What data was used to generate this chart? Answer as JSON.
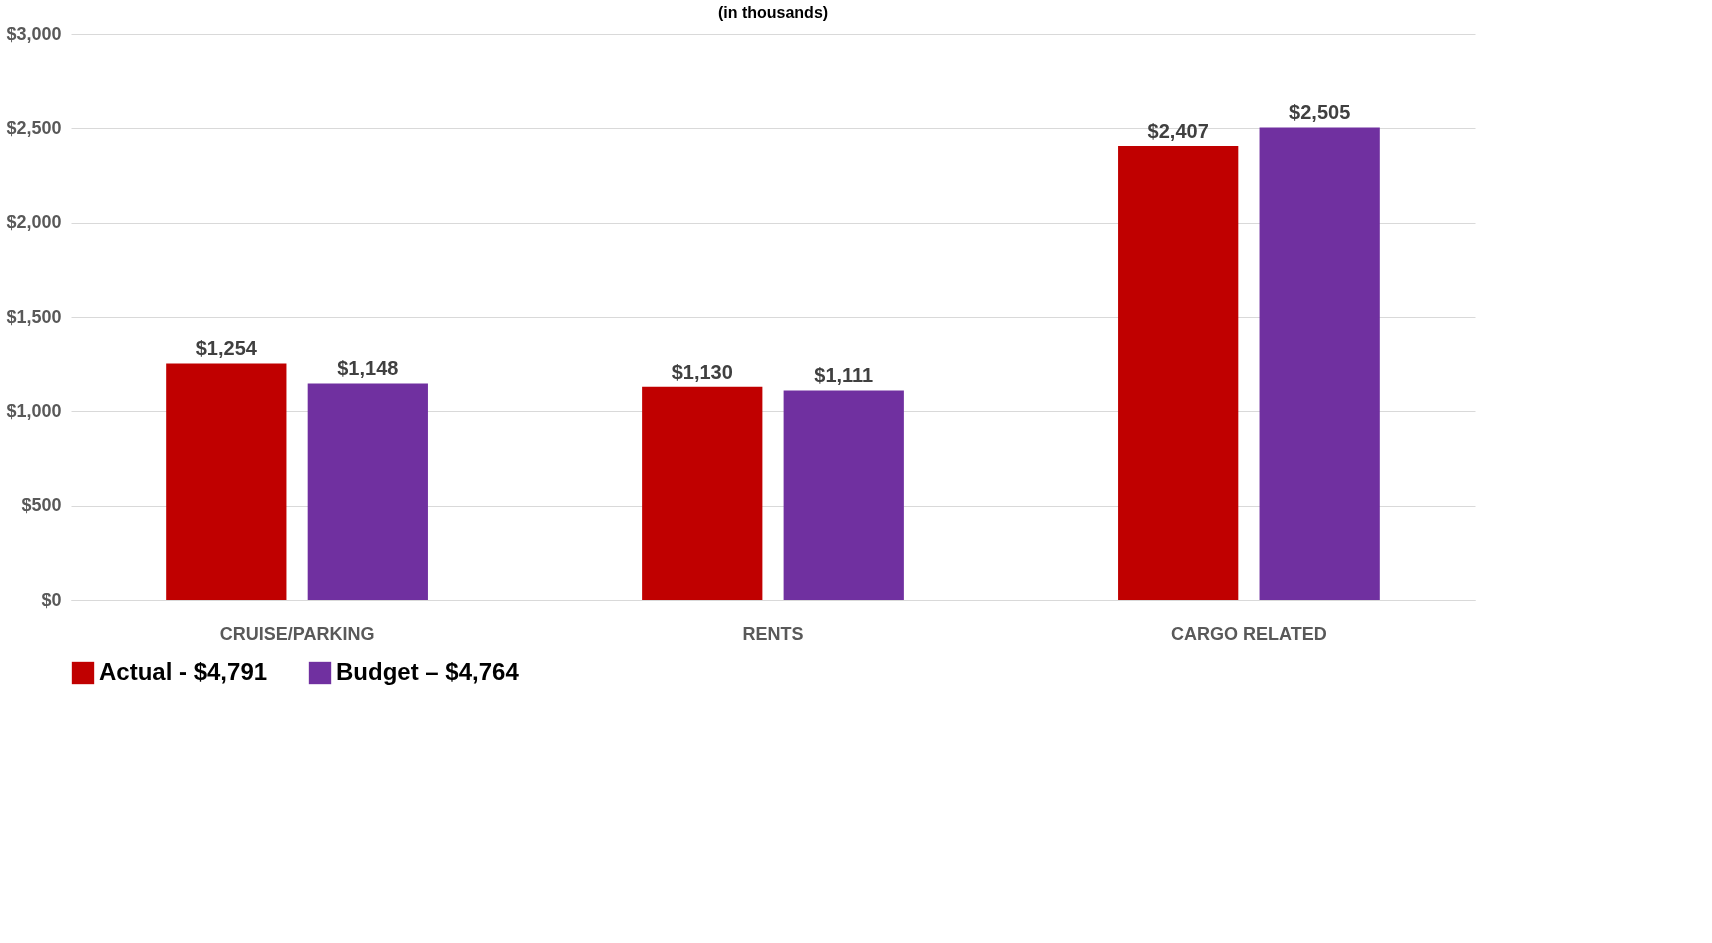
{
  "chart_data": {
    "type": "bar",
    "title": "(in thousands)",
    "categories": [
      "CRUISE/PARKING",
      "RENTS",
      "CARGO RELATED"
    ],
    "series": [
      {
        "name": "Actual - $4,791",
        "color": "#c00000",
        "values": [
          1254,
          1130,
          2407
        ],
        "value_labels": [
          "$1,254",
          "$1,130",
          "$2,407"
        ]
      },
      {
        "name": "Budget – $4,764",
        "color": "#7030a0",
        "values": [
          1148,
          1111,
          2505
        ],
        "value_labels": [
          "$1,148",
          "$1,111",
          "$2,505"
        ]
      }
    ],
    "ylim": [
      0,
      3000
    ],
    "yticks": [
      {
        "value": 0,
        "label": "$0"
      },
      {
        "value": 500,
        "label": "$500"
      },
      {
        "value": 1000,
        "label": "$1,000"
      },
      {
        "value": 1500,
        "label": "$1,500"
      },
      {
        "value": 2000,
        "label": "$2,000"
      },
      {
        "value": 2500,
        "label": "$2,500"
      },
      {
        "value": 3000,
        "label": "$3,000"
      }
    ],
    "grid": "y",
    "legend": "bottom"
  }
}
